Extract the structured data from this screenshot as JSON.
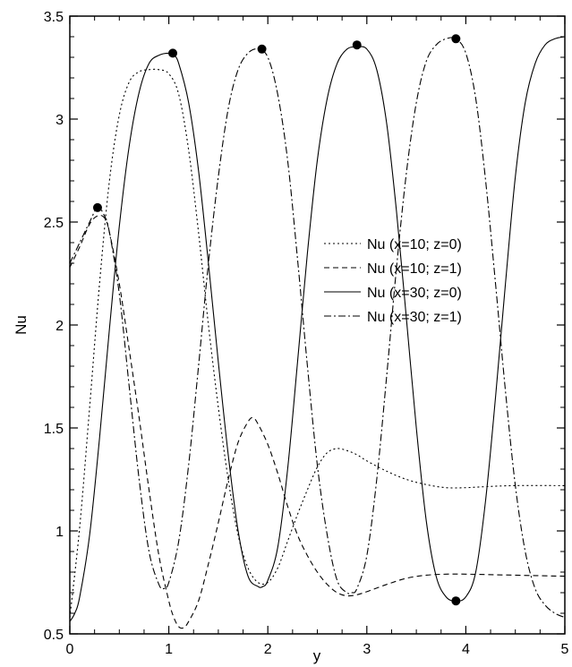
{
  "chart_data": {
    "type": "line",
    "xlabel": "y",
    "ylabel": "Nu",
    "xlim": [
      0,
      5
    ],
    "ylim": [
      0.5,
      3.5
    ],
    "xticks": [
      "0",
      "1",
      "2",
      "3",
      "4",
      "5"
    ],
    "yticks": [
      "0.5",
      "1",
      "1.5",
      "2",
      "2.5",
      "3",
      "3.5"
    ],
    "grid": false,
    "legend_position": "right",
    "series": [
      {
        "name": "Nu (x=10; z=0)",
        "dash": "2,3",
        "points": [
          [
            0,
            0.58
          ],
          [
            0.1,
            1.02
          ],
          [
            0.2,
            1.6
          ],
          [
            0.3,
            2.2
          ],
          [
            0.4,
            2.7
          ],
          [
            0.5,
            3.02
          ],
          [
            0.6,
            3.18
          ],
          [
            0.7,
            3.23
          ],
          [
            0.8,
            3.24
          ],
          [
            0.9,
            3.24
          ],
          [
            1.0,
            3.22
          ],
          [
            1.1,
            3.12
          ],
          [
            1.2,
            2.85
          ],
          [
            1.3,
            2.45
          ],
          [
            1.4,
            2.0
          ],
          [
            1.5,
            1.6
          ],
          [
            1.6,
            1.25
          ],
          [
            1.7,
            0.98
          ],
          [
            1.8,
            0.82
          ],
          [
            1.9,
            0.75
          ],
          [
            2.0,
            0.75
          ],
          [
            2.1,
            0.82
          ],
          [
            2.2,
            0.95
          ],
          [
            2.3,
            1.08
          ],
          [
            2.4,
            1.2
          ],
          [
            2.5,
            1.31
          ],
          [
            2.6,
            1.38
          ],
          [
            2.7,
            1.4
          ],
          [
            2.8,
            1.39
          ],
          [
            2.9,
            1.37
          ],
          [
            3.0,
            1.34
          ],
          [
            3.2,
            1.29
          ],
          [
            3.4,
            1.25
          ],
          [
            3.6,
            1.225
          ],
          [
            3.8,
            1.21
          ],
          [
            4.0,
            1.21
          ],
          [
            4.2,
            1.215
          ],
          [
            4.5,
            1.22
          ],
          [
            5.0,
            1.22
          ]
        ]
      },
      {
        "name": "Nu (x=10; z=1)",
        "dash": "6,4",
        "points": [
          [
            0,
            2.28
          ],
          [
            0.1,
            2.38
          ],
          [
            0.2,
            2.49
          ],
          [
            0.28,
            2.53
          ],
          [
            0.35,
            2.52
          ],
          [
            0.4,
            2.45
          ],
          [
            0.5,
            2.2
          ],
          [
            0.6,
            1.88
          ],
          [
            0.7,
            1.55
          ],
          [
            0.8,
            1.2
          ],
          [
            0.9,
            0.88
          ],
          [
            1.0,
            0.66
          ],
          [
            1.05,
            0.58
          ],
          [
            1.1,
            0.535
          ],
          [
            1.15,
            0.53
          ],
          [
            1.2,
            0.56
          ],
          [
            1.3,
            0.66
          ],
          [
            1.4,
            0.84
          ],
          [
            1.5,
            1.04
          ],
          [
            1.6,
            1.25
          ],
          [
            1.7,
            1.43
          ],
          [
            1.8,
            1.53
          ],
          [
            1.85,
            1.55
          ],
          [
            1.9,
            1.52
          ],
          [
            2.0,
            1.42
          ],
          [
            2.1,
            1.28
          ],
          [
            2.2,
            1.12
          ],
          [
            2.3,
            0.98
          ],
          [
            2.4,
            0.88
          ],
          [
            2.5,
            0.8
          ],
          [
            2.6,
            0.74
          ],
          [
            2.7,
            0.7
          ],
          [
            2.8,
            0.685
          ],
          [
            2.9,
            0.69
          ],
          [
            3.0,
            0.705
          ],
          [
            3.2,
            0.74
          ],
          [
            3.4,
            0.77
          ],
          [
            3.6,
            0.785
          ],
          [
            3.8,
            0.79
          ],
          [
            4.0,
            0.79
          ],
          [
            4.3,
            0.787
          ],
          [
            4.7,
            0.783
          ],
          [
            5.0,
            0.78
          ]
        ]
      },
      {
        "name": "Nu (x=30; z=0)",
        "dash": "",
        "points": [
          [
            0,
            0.56
          ],
          [
            0.05,
            0.6
          ],
          [
            0.1,
            0.68
          ],
          [
            0.2,
            0.98
          ],
          [
            0.3,
            1.45
          ],
          [
            0.4,
            1.98
          ],
          [
            0.5,
            2.48
          ],
          [
            0.6,
            2.87
          ],
          [
            0.7,
            3.13
          ],
          [
            0.8,
            3.27
          ],
          [
            0.9,
            3.31
          ],
          [
            1.0,
            3.32
          ],
          [
            1.05,
            3.31
          ],
          [
            1.1,
            3.27
          ],
          [
            1.2,
            3.08
          ],
          [
            1.3,
            2.75
          ],
          [
            1.4,
            2.3
          ],
          [
            1.5,
            1.82
          ],
          [
            1.6,
            1.37
          ],
          [
            1.7,
            1.0
          ],
          [
            1.8,
            0.78
          ],
          [
            1.9,
            0.73
          ],
          [
            1.95,
            0.73
          ],
          [
            2.0,
            0.76
          ],
          [
            2.1,
            0.92
          ],
          [
            2.2,
            1.3
          ],
          [
            2.3,
            1.82
          ],
          [
            2.4,
            2.35
          ],
          [
            2.5,
            2.8
          ],
          [
            2.6,
            3.1
          ],
          [
            2.7,
            3.27
          ],
          [
            2.8,
            3.34
          ],
          [
            2.9,
            3.35
          ],
          [
            3.0,
            3.34
          ],
          [
            3.1,
            3.24
          ],
          [
            3.2,
            2.98
          ],
          [
            3.3,
            2.55
          ],
          [
            3.4,
            2.03
          ],
          [
            3.5,
            1.5
          ],
          [
            3.6,
            1.05
          ],
          [
            3.7,
            0.78
          ],
          [
            3.8,
            0.68
          ],
          [
            3.9,
            0.66
          ],
          [
            4.0,
            0.68
          ],
          [
            4.1,
            0.8
          ],
          [
            4.2,
            1.15
          ],
          [
            4.3,
            1.65
          ],
          [
            4.4,
            2.2
          ],
          [
            4.5,
            2.72
          ],
          [
            4.6,
            3.08
          ],
          [
            4.7,
            3.27
          ],
          [
            4.8,
            3.36
          ],
          [
            4.9,
            3.39
          ],
          [
            5.0,
            3.4
          ]
        ]
      },
      {
        "name": "Nu (x=30; z=1)",
        "dash": "8,3,2,3",
        "points": [
          [
            0,
            2.3
          ],
          [
            0.1,
            2.4
          ],
          [
            0.2,
            2.5
          ],
          [
            0.28,
            2.57
          ],
          [
            0.35,
            2.53
          ],
          [
            0.4,
            2.45
          ],
          [
            0.5,
            2.15
          ],
          [
            0.6,
            1.7
          ],
          [
            0.7,
            1.25
          ],
          [
            0.8,
            0.9
          ],
          [
            0.9,
            0.74
          ],
          [
            0.95,
            0.72
          ],
          [
            1.0,
            0.75
          ],
          [
            1.1,
            0.95
          ],
          [
            1.2,
            1.32
          ],
          [
            1.3,
            1.8
          ],
          [
            1.4,
            2.3
          ],
          [
            1.5,
            2.72
          ],
          [
            1.6,
            3.05
          ],
          [
            1.7,
            3.24
          ],
          [
            1.8,
            3.32
          ],
          [
            1.9,
            3.34
          ],
          [
            2.0,
            3.3
          ],
          [
            2.1,
            3.12
          ],
          [
            2.2,
            2.8
          ],
          [
            2.3,
            2.32
          ],
          [
            2.4,
            1.8
          ],
          [
            2.5,
            1.32
          ],
          [
            2.6,
            0.98
          ],
          [
            2.7,
            0.76
          ],
          [
            2.8,
            0.7
          ],
          [
            2.85,
            0.7
          ],
          [
            2.9,
            0.72
          ],
          [
            3.0,
            0.88
          ],
          [
            3.1,
            1.25
          ],
          [
            3.2,
            1.75
          ],
          [
            3.3,
            2.28
          ],
          [
            3.4,
            2.74
          ],
          [
            3.5,
            3.08
          ],
          [
            3.6,
            3.28
          ],
          [
            3.7,
            3.36
          ],
          [
            3.8,
            3.39
          ],
          [
            3.9,
            3.39
          ],
          [
            4.0,
            3.32
          ],
          [
            4.1,
            3.1
          ],
          [
            4.2,
            2.7
          ],
          [
            4.3,
            2.2
          ],
          [
            4.4,
            1.68
          ],
          [
            4.5,
            1.22
          ],
          [
            4.6,
            0.9
          ],
          [
            4.7,
            0.72
          ],
          [
            4.8,
            0.64
          ],
          [
            4.9,
            0.6
          ],
          [
            5.0,
            0.58
          ]
        ]
      }
    ],
    "markers": [
      [
        0.28,
        2.57
      ],
      [
        1.04,
        3.32
      ],
      [
        1.94,
        3.34
      ],
      [
        2.9,
        3.36
      ],
      [
        3.9,
        3.39
      ],
      [
        3.9,
        0.66
      ]
    ]
  }
}
